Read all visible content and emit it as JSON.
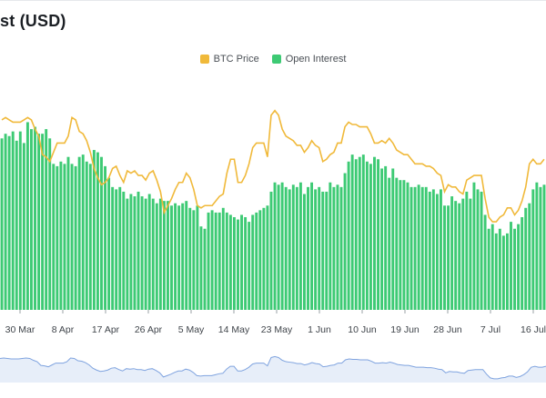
{
  "title": "st (USD)",
  "colors": {
    "price_line": "#f0b93a",
    "open_interest_bar": "#3dca74",
    "navigator_line": "#7fa3df",
    "navigator_fill": "#dde7f7"
  },
  "chart_data": {
    "type": "bar",
    "title": "st (USD)",
    "legend": {
      "placement": "top-center"
    },
    "series": [
      {
        "name": "BTC Price",
        "type": "line",
        "values": []
      },
      {
        "name": "Open Interest",
        "type": "bar",
        "values": []
      }
    ],
    "x_ticks": [
      "30 Mar",
      "8 Apr",
      "17 Apr",
      "26 Apr",
      "5 May",
      "14 May",
      "23 May",
      "1 Jun",
      "10 Jun",
      "19 Jun",
      "28 Jun",
      "7 Jul",
      "16 Jul"
    ],
    "grid": false
  },
  "raw": {
    "oi": [
      74,
      76,
      75,
      77,
      73,
      77,
      72,
      81,
      78,
      79,
      76,
      76,
      78,
      74,
      63,
      62,
      64,
      63,
      66,
      63,
      62,
      66,
      67,
      64,
      63,
      69,
      68,
      66,
      62,
      57,
      53,
      52,
      53,
      51,
      48,
      50,
      49,
      51,
      49,
      48,
      50,
      48,
      46,
      48,
      47,
      47,
      45,
      46,
      45,
      46,
      47,
      44,
      43,
      45,
      36,
      35,
      42,
      43,
      42,
      42,
      44,
      42,
      41,
      40,
      39,
      41,
      40,
      38,
      41,
      42,
      43,
      44,
      45,
      51,
      55,
      54,
      55,
      53,
      52,
      54,
      53,
      55,
      50,
      53,
      55,
      52,
      53,
      51,
      51,
      55,
      53,
      54,
      53,
      59,
      64,
      67,
      65,
      66,
      67,
      64,
      63,
      66,
      65,
      61,
      62,
      57,
      61,
      57,
      56,
      56,
      55,
      53,
      53,
      54,
      53,
      53,
      51,
      52,
      50,
      52,
      45,
      45,
      49,
      47,
      46,
      48,
      51,
      48,
      55,
      52,
      51,
      41,
      35,
      37,
      33,
      35,
      32,
      33,
      38,
      35,
      37,
      40,
      44,
      46,
      52,
      55,
      53,
      54
    ],
    "price": [
      82,
      83,
      82,
      81,
      81,
      81,
      82,
      83,
      82,
      78,
      75,
      67,
      66,
      64,
      68,
      72,
      72,
      72,
      75,
      83,
      82,
      77,
      76,
      73,
      68,
      61,
      57,
      54,
      55,
      57,
      61,
      62,
      58,
      55,
      60,
      59,
      60,
      58,
      58,
      56,
      59,
      60,
      56,
      51,
      42,
      45,
      48,
      52,
      55,
      55,
      59,
      57,
      52,
      45,
      44,
      45,
      45,
      45,
      47,
      49,
      50,
      59,
      65,
      65,
      55,
      55,
      58,
      63,
      70,
      72,
      72,
      72,
      66,
      84,
      86,
      84,
      78,
      75,
      74,
      73,
      71,
      71,
      68,
      70,
      73,
      71,
      70,
      64,
      65,
      67,
      68,
      72,
      72,
      79,
      81,
      80,
      80,
      79,
      79,
      79,
      76,
      72,
      72,
      73,
      72,
      74,
      72,
      69,
      68,
      67,
      67,
      65,
      63,
      63,
      63,
      62,
      62,
      61,
      59,
      58,
      51,
      54,
      53,
      53,
      51,
      50,
      56,
      57,
      58,
      58,
      58,
      48,
      40,
      38,
      38,
      40,
      41,
      44,
      44,
      41,
      43,
      47,
      53,
      63,
      65,
      63,
      63,
      65
    ]
  }
}
